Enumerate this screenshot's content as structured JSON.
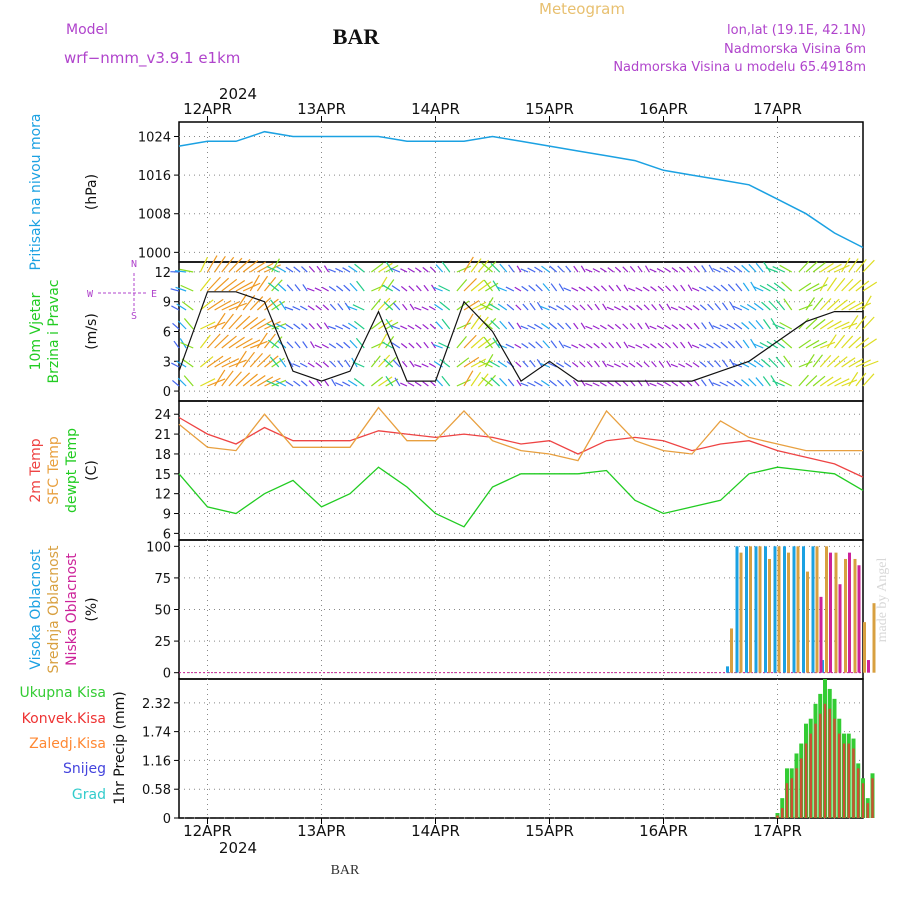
{
  "header": {
    "model_label": "Model",
    "model_name": "wrf−nmm_v3.9.1  e1km",
    "title": "BAR",
    "product": "Meteogram",
    "lonlat": "lon,lat (19.1E, 42.1N)",
    "elevation": "Nadmorska Visina 6m",
    "model_elevation": "Nadmorska Visina u modelu 65.4918m"
  },
  "footer_title": "BAR",
  "watermark": "made by Angel",
  "colors": {
    "pressure": "#1ba1e2",
    "temp2m": "#ee4444",
    "sfc_temp": "#e8a040",
    "dewpoint": "#22cc22",
    "cloud_high": "#1ba1e2",
    "cloud_mid": "#d8a040",
    "cloud_low": "#cc2299",
    "precip_total": "#33cc33",
    "precip_conv": "#ee3333",
    "precip_frozen": "#ff8833",
    "precip_snow": "#4444dd",
    "precip_hail": "#33cccc",
    "wind_calm": "#9922cc",
    "wind_strong": "#22cc22"
  },
  "time_axis": {
    "year": "2024",
    "days": [
      "12APR",
      "13APR",
      "14APR",
      "15APR",
      "16APR",
      "17APR"
    ],
    "start_hour_offset": -6,
    "total_hours": 144
  },
  "chart_data": [
    {
      "type": "line",
      "id": "pressure",
      "ylabel": [
        "Pritisak na nivou mora",
        "(hPa)"
      ],
      "ylim": [
        998,
        1027
      ],
      "yticks": [
        "1000",
        "1008",
        "1016",
        "1024"
      ],
      "ytick_values": [
        1000,
        1008,
        1016,
        1024
      ],
      "x_hours": [
        -6,
        0,
        6,
        12,
        18,
        24,
        30,
        36,
        42,
        48,
        54,
        60,
        66,
        72,
        78,
        84,
        90,
        96,
        102,
        108,
        114,
        120,
        126,
        132,
        138
      ],
      "series": [
        {
          "values": [
            1022,
            1023,
            1023,
            1025,
            1024,
            1024,
            1024,
            1024,
            1023,
            1023,
            1023,
            1024,
            1023,
            1022,
            1021,
            1020,
            1019,
            1017,
            1016,
            1015,
            1014,
            1011,
            1008,
            1004,
            1001
          ]
        }
      ]
    },
    {
      "type": "line",
      "id": "wind",
      "ylabel": [
        "10m Vjetar",
        "Brzina i Pravac",
        "(m/s)"
      ],
      "compass": "N S E W",
      "ylim": [
        -1,
        13
      ],
      "yticks": [
        "0",
        "3",
        "6",
        "9",
        "12"
      ],
      "ytick_values": [
        0,
        3,
        6,
        9,
        12
      ],
      "x_hours": [
        -6,
        0,
        6,
        12,
        18,
        24,
        30,
        36,
        42,
        48,
        54,
        60,
        66,
        72,
        78,
        84,
        90,
        96,
        102,
        108,
        114,
        120,
        126,
        132,
        138
      ],
      "series": [
        {
          "name": "wind speed",
          "values": [
            2,
            10,
            10,
            9,
            2,
            1,
            2,
            8,
            1,
            1,
            9,
            6,
            1,
            3,
            1,
            1,
            1,
            1,
            1,
            2,
            3,
            5,
            7,
            8,
            8
          ]
        }
      ]
    },
    {
      "type": "line",
      "id": "temperature",
      "ylabel": [
        "2m Temp",
        "SFC Temp",
        "dewpt Temp",
        "(C)"
      ],
      "ylim": [
        5,
        26
      ],
      "yticks": [
        "6",
        "9",
        "12",
        "15",
        "18",
        "21",
        "24"
      ],
      "ytick_values": [
        6,
        9,
        12,
        15,
        18,
        21,
        24
      ],
      "x_hours": [
        -6,
        0,
        6,
        12,
        18,
        24,
        30,
        36,
        42,
        48,
        54,
        60,
        66,
        72,
        78,
        84,
        90,
        96,
        102,
        108,
        114,
        120,
        126,
        132,
        138
      ],
      "series": [
        {
          "name": "2m Temp",
          "values": [
            23.5,
            21,
            19.5,
            22,
            20,
            20,
            20,
            21.5,
            21,
            20.5,
            21,
            20.5,
            19.5,
            20,
            18,
            20,
            20.5,
            20,
            18.5,
            19.5,
            20,
            18.5,
            17.5,
            16.5,
            14.5
          ]
        },
        {
          "name": "SFC Temp",
          "values": [
            22.5,
            19,
            18.5,
            24,
            19,
            19,
            19,
            25,
            20,
            20,
            24.5,
            20,
            18.5,
            18,
            17,
            24.5,
            20,
            18.5,
            18,
            23,
            20.5,
            19.5,
            18.5,
            18.5,
            18.5
          ]
        },
        {
          "name": "dewpt Temp",
          "values": [
            15,
            10,
            9,
            12,
            14,
            10,
            12,
            16,
            13,
            9,
            7,
            13,
            15,
            15,
            15,
            15.5,
            11,
            9,
            10,
            11,
            15,
            16,
            15.5,
            15,
            12.5
          ]
        }
      ]
    },
    {
      "type": "bar",
      "id": "clouds",
      "ylabel": [
        "Visoka Oblacnost",
        "Srednja Oblacnost",
        "Niska Oblacnost",
        "(%)"
      ],
      "ylim": [
        -5,
        105
      ],
      "yticks": [
        "0",
        "25",
        "50",
        "75",
        "100"
      ],
      "ytick_values": [
        0,
        25,
        50,
        75,
        100
      ],
      "x_hours": [
        108,
        110,
        112,
        114,
        116,
        118,
        120,
        122,
        124,
        126,
        128,
        130,
        132,
        134,
        136,
        138,
        140
      ],
      "series": [
        {
          "name": "Visoka Oblacnost",
          "values": [
            0,
            5,
            100,
            100,
            100,
            100,
            100,
            100,
            100,
            100,
            100,
            10,
            0,
            0,
            0,
            0,
            0
          ]
        },
        {
          "name": "Srednja Oblacnost",
          "values": [
            0,
            35,
            95,
            100,
            100,
            90,
            100,
            95,
            100,
            80,
            100,
            100,
            95,
            90,
            90,
            40,
            55
          ]
        },
        {
          "name": "Niska Oblacnost",
          "values": [
            0,
            0,
            0,
            0,
            0,
            0,
            0,
            0,
            0,
            0,
            60,
            95,
            70,
            95,
            85,
            10,
            0
          ]
        }
      ]
    },
    {
      "type": "bar",
      "id": "precip",
      "ylabel": [
        "Ukupna Kisa",
        "Konvek.Kisa",
        "Zaledj.Kisa",
        "Snijeg",
        "Grad",
        "1hr Precip (mm)"
      ],
      "ylim": [
        0,
        2.8
      ],
      "yticks": [
        "0",
        "0.58",
        "1.16",
        "1.74",
        "2.32"
      ],
      "ytick_values": [
        0,
        0.58,
        1.16,
        1.74,
        2.32
      ],
      "x_hours": [
        120,
        121,
        122,
        123,
        124,
        125,
        126,
        127,
        128,
        129,
        130,
        131,
        132,
        133,
        134,
        135,
        136,
        137,
        138,
        139,
        140
      ],
      "series": [
        {
          "name": "Ukupna Kisa",
          "values": [
            0.1,
            0.4,
            1.0,
            1.0,
            1.3,
            1.5,
            1.9,
            2.0,
            2.3,
            2.5,
            2.8,
            2.6,
            2.4,
            2.0,
            1.7,
            1.7,
            1.6,
            1.1,
            0.8,
            0.4,
            0.9
          ]
        },
        {
          "name": "Konvek.Kisa",
          "values": [
            0.05,
            0.2,
            0.7,
            0.8,
            1.0,
            1.2,
            1.5,
            1.7,
            1.9,
            2.1,
            2.3,
            2.2,
            2.0,
            1.7,
            1.5,
            1.5,
            1.4,
            1.0,
            0.7,
            0.3,
            0.8
          ]
        }
      ]
    }
  ]
}
